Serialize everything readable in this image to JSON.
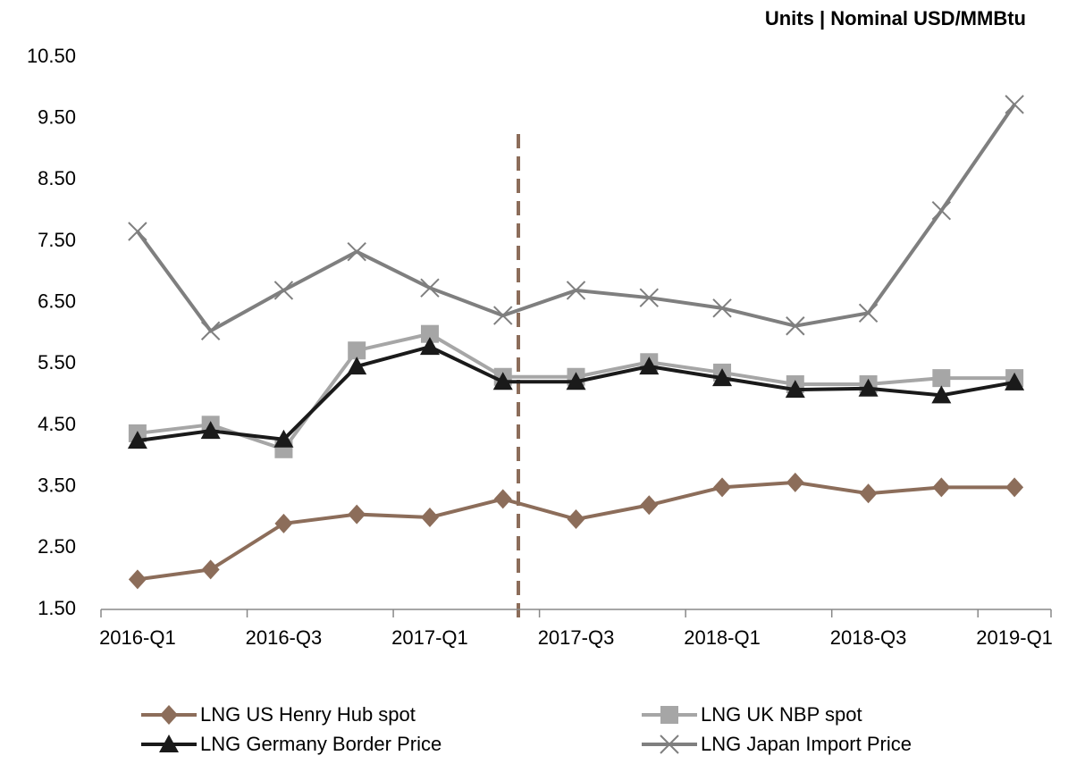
{
  "chart_data": {
    "type": "line",
    "title": "Units | Nominal USD/MMBtu",
    "categories": [
      "2016-Q1",
      null,
      "2016-Q3",
      null,
      "2017-Q1",
      null,
      "2017-Q3",
      null,
      "2018-Q1",
      null,
      "2018-Q3",
      null,
      "2019-Q1"
    ],
    "series": [
      {
        "name": "LNG US Henry Hub spot",
        "color": "#8c6d5a",
        "marker": "diamond",
        "values": [
          1.99,
          2.15,
          2.9,
          3.05,
          3.0,
          3.3,
          2.97,
          3.2,
          3.49,
          3.57,
          3.39,
          3.49,
          3.49
        ]
      },
      {
        "name": "LNG UK NBP spot",
        "color": "#a6a6a6",
        "marker": "square",
        "values": [
          4.37,
          4.51,
          4.11,
          5.72,
          5.99,
          5.29,
          5.29,
          5.53,
          5.36,
          5.17,
          5.17,
          5.27,
          5.27
        ]
      },
      {
        "name": "LNG Germany Border Price",
        "color": "#1a1a1a",
        "marker": "triangle",
        "values": [
          4.25,
          4.41,
          4.27,
          5.46,
          5.78,
          5.21,
          5.21,
          5.46,
          5.27,
          5.08,
          5.1,
          4.99,
          5.2
        ]
      },
      {
        "name": "LNG Japan Import Price",
        "color": "#7f7f7f",
        "marker": "x",
        "values": [
          7.66,
          6.04,
          6.7,
          7.33,
          6.74,
          6.29,
          6.7,
          6.58,
          6.41,
          6.12,
          6.33,
          8.0,
          9.73
        ]
      }
    ],
    "ylim": [
      1.5,
      10.5
    ],
    "yticks": [
      {
        "value": 1.5,
        "label": "1.50"
      },
      {
        "value": 2.5,
        "label": "2.50"
      },
      {
        "value": 3.5,
        "label": "3.50"
      },
      {
        "value": 4.5,
        "label": "4.50"
      },
      {
        "value": 5.5,
        "label": "5.50"
      },
      {
        "value": 6.5,
        "label": "6.50"
      },
      {
        "value": 7.5,
        "label": "7.50"
      },
      {
        "value": 8.5,
        "label": "8.50"
      },
      {
        "value": 9.5,
        "label": "9.50"
      },
      {
        "value": 10.5,
        "label": "10.50"
      }
    ],
    "grid": false,
    "legend": "bottom"
  }
}
